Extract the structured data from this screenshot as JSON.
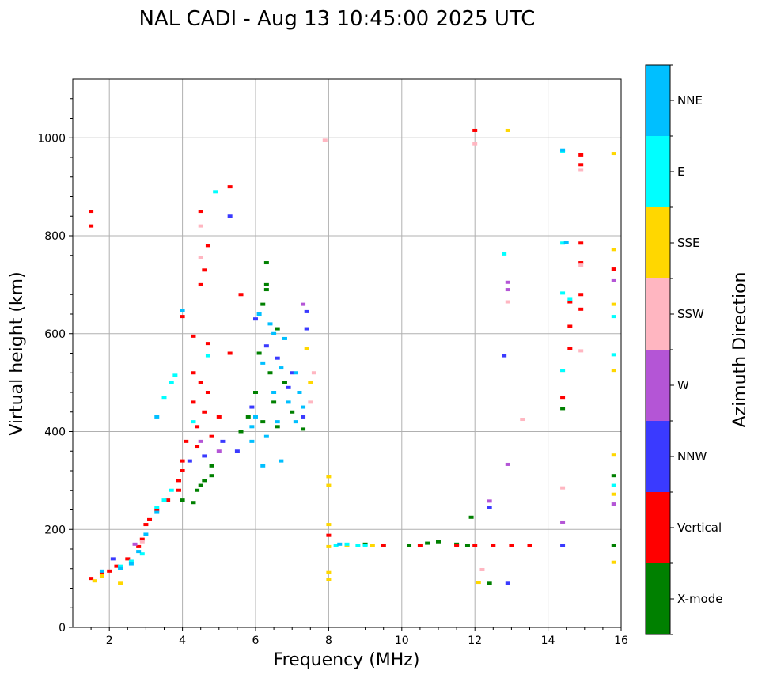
{
  "chart_data": {
    "type": "scatter",
    "title": "NAL CADI - Aug 13 10:45:00 2025 UTC",
    "xlabel": "Frequency (MHz)",
    "ylabel": "Virtual height (km)",
    "xlim": [
      1,
      16
    ],
    "ylim": [
      0,
      1120
    ],
    "x_ticks": [
      2,
      4,
      6,
      8,
      10,
      12,
      14,
      16
    ],
    "y_ticks": [
      0,
      200,
      400,
      600,
      800,
      1000
    ],
    "x_tick_labels": [
      "2",
      "4",
      "6",
      "8",
      "10",
      "12",
      "14",
      "16"
    ],
    "y_tick_labels": [
      "0",
      "200",
      "400",
      "600",
      "800",
      "1000"
    ],
    "grid": true,
    "colorbar": {
      "label": "Azimuth Direction",
      "categories": [
        {
          "name": "X-mode",
          "color": "#008000"
        },
        {
          "name": "Vertical",
          "color": "#ff0000"
        },
        {
          "name": "NNW",
          "color": "#3a3aff"
        },
        {
          "name": "W",
          "color": "#b455d6"
        },
        {
          "name": "SSW",
          "color": "#ffb6c1"
        },
        {
          "name": "SSE",
          "color": "#ffd700"
        },
        {
          "name": "E",
          "color": "#00ffff"
        },
        {
          "name": "NNE",
          "color": "#00bfff"
        }
      ]
    },
    "series": [
      {
        "name": "X-mode",
        "points": [
          [
            6.3,
            745
          ],
          [
            6.3,
            700
          ],
          [
            6.3,
            690
          ],
          [
            6.2,
            660
          ],
          [
            6.6,
            610
          ],
          [
            6.1,
            560
          ],
          [
            6.4,
            520
          ],
          [
            6.8,
            500
          ],
          [
            6.0,
            480
          ],
          [
            6.5,
            460
          ],
          [
            7.0,
            440
          ],
          [
            5.8,
            430
          ],
          [
            6.2,
            420
          ],
          [
            6.6,
            410
          ],
          [
            7.3,
            405
          ],
          [
            5.6,
            400
          ],
          [
            4.8,
            330
          ],
          [
            4.8,
            310
          ],
          [
            4.6,
            300
          ],
          [
            4.5,
            290
          ],
          [
            4.4,
            280
          ],
          [
            4.0,
            260
          ],
          [
            4.3,
            255
          ],
          [
            9.0,
            170
          ],
          [
            9.5,
            168
          ],
          [
            10.2,
            168
          ],
          [
            10.7,
            172
          ],
          [
            11.0,
            175
          ],
          [
            11.5,
            170
          ],
          [
            11.8,
            168
          ],
          [
            12.4,
            90
          ],
          [
            11.9,
            225
          ],
          [
            14.4,
            447
          ],
          [
            15.8,
            168
          ],
          [
            15.8,
            310
          ]
        ]
      },
      {
        "name": "Vertical",
        "points": [
          [
            1.5,
            820
          ],
          [
            1.5,
            850
          ],
          [
            5.3,
            900
          ],
          [
            4.5,
            850
          ],
          [
            4.7,
            780
          ],
          [
            4.6,
            730
          ],
          [
            4.5,
            700
          ],
          [
            5.6,
            680
          ],
          [
            4.0,
            635
          ],
          [
            4.3,
            595
          ],
          [
            4.7,
            580
          ],
          [
            5.3,
            560
          ],
          [
            4.3,
            520
          ],
          [
            4.5,
            500
          ],
          [
            4.7,
            480
          ],
          [
            4.3,
            460
          ],
          [
            4.6,
            440
          ],
          [
            5.0,
            430
          ],
          [
            4.4,
            410
          ],
          [
            4.1,
            380
          ],
          [
            4.4,
            370
          ],
          [
            4.8,
            390
          ],
          [
            4.0,
            340
          ],
          [
            4.0,
            320
          ],
          [
            3.9,
            300
          ],
          [
            3.9,
            280
          ],
          [
            3.6,
            260
          ],
          [
            3.3,
            240
          ],
          [
            3.1,
            220
          ],
          [
            3.0,
            210
          ],
          [
            2.9,
            180
          ],
          [
            2.8,
            165
          ],
          [
            2.5,
            140
          ],
          [
            2.2,
            125
          ],
          [
            2.0,
            115
          ],
          [
            1.8,
            110
          ],
          [
            1.5,
            100
          ],
          [
            8.0,
            188
          ],
          [
            9.5,
            168
          ],
          [
            10.5,
            168
          ],
          [
            11.5,
            168
          ],
          [
            12.0,
            168
          ],
          [
            12.5,
            168
          ],
          [
            13.0,
            168
          ],
          [
            13.5,
            168
          ],
          [
            14.4,
            470
          ],
          [
            14.6,
            570
          ],
          [
            14.6,
            615
          ],
          [
            14.6,
            665
          ],
          [
            14.9,
            650
          ],
          [
            14.9,
            680
          ],
          [
            14.9,
            745
          ],
          [
            14.9,
            785
          ],
          [
            14.9,
            945
          ],
          [
            14.9,
            965
          ],
          [
            15.8,
            732
          ],
          [
            12.0,
            1015
          ]
        ]
      },
      {
        "name": "NNW",
        "points": [
          [
            5.3,
            840
          ],
          [
            6.0,
            630
          ],
          [
            6.3,
            575
          ],
          [
            6.6,
            550
          ],
          [
            7.0,
            520
          ],
          [
            6.9,
            490
          ],
          [
            5.9,
            450
          ],
          [
            7.3,
            430
          ],
          [
            5.1,
            380
          ],
          [
            5.5,
            360
          ],
          [
            4.6,
            350
          ],
          [
            4.2,
            340
          ],
          [
            12.8,
            555
          ],
          [
            12.9,
            90
          ],
          [
            12.4,
            245
          ],
          [
            14.4,
            168
          ],
          [
            7.4,
            645
          ],
          [
            7.4,
            610
          ],
          [
            2.1,
            140
          ]
        ]
      },
      {
        "name": "W",
        "points": [
          [
            4.5,
            380
          ],
          [
            5.0,
            360
          ],
          [
            7.3,
            660
          ],
          [
            12.9,
            705
          ],
          [
            12.9,
            690
          ],
          [
            12.9,
            333
          ],
          [
            12.4,
            258
          ],
          [
            14.4,
            215
          ],
          [
            15.8,
            708
          ],
          [
            15.8,
            252
          ],
          [
            2.7,
            170
          ]
        ]
      },
      {
        "name": "SSW",
        "points": [
          [
            4.5,
            820
          ],
          [
            4.5,
            755
          ],
          [
            7.6,
            520
          ],
          [
            7.5,
            460
          ],
          [
            12.9,
            665
          ],
          [
            13.3,
            425
          ],
          [
            14.4,
            285
          ],
          [
            14.4,
            525
          ],
          [
            14.9,
            565
          ],
          [
            14.9,
            935
          ],
          [
            14.9,
            740
          ],
          [
            7.9,
            995
          ],
          [
            12.0,
            988
          ],
          [
            12.2,
            118
          ],
          [
            2.9,
            175
          ]
        ]
      },
      {
        "name": "SSE",
        "points": [
          [
            12.9,
            1015
          ],
          [
            15.8,
            968
          ],
          [
            15.8,
            772
          ],
          [
            15.8,
            660
          ],
          [
            15.8,
            525
          ],
          [
            15.8,
            352
          ],
          [
            15.8,
            272
          ],
          [
            15.8,
            133
          ],
          [
            8.0,
            308
          ],
          [
            8.0,
            290
          ],
          [
            8.0,
            210
          ],
          [
            8.0,
            165
          ],
          [
            8.0,
            112
          ],
          [
            8.0,
            98
          ],
          [
            8.5,
            168
          ],
          [
            9.2,
            168
          ],
          [
            12.1,
            92
          ],
          [
            7.4,
            570
          ],
          [
            7.5,
            500
          ],
          [
            2.3,
            90
          ],
          [
            1.8,
            105
          ],
          [
            1.6,
            95
          ]
        ]
      },
      {
        "name": "E",
        "points": [
          [
            4.9,
            890
          ],
          [
            4.7,
            555
          ],
          [
            3.7,
            500
          ],
          [
            3.8,
            515
          ],
          [
            3.5,
            470
          ],
          [
            4.3,
            420
          ],
          [
            3.7,
            280
          ],
          [
            3.5,
            260
          ],
          [
            3.3,
            245
          ],
          [
            2.9,
            150
          ],
          [
            2.6,
            135
          ],
          [
            2.3,
            125
          ],
          [
            12.8,
            763
          ],
          [
            14.4,
            973
          ],
          [
            14.4,
            785
          ],
          [
            14.4,
            683
          ],
          [
            14.4,
            525
          ],
          [
            14.6,
            670
          ],
          [
            15.8,
            635
          ],
          [
            15.8,
            557
          ],
          [
            15.8,
            290
          ],
          [
            8.2,
            168
          ],
          [
            8.5,
            170
          ],
          [
            8.8,
            168
          ],
          [
            9.0,
            168
          ]
        ]
      },
      {
        "name": "NNE",
        "points": [
          [
            4.0,
            648
          ],
          [
            6.1,
            640
          ],
          [
            6.4,
            620
          ],
          [
            6.5,
            600
          ],
          [
            6.8,
            590
          ],
          [
            6.2,
            540
          ],
          [
            6.7,
            530
          ],
          [
            7.1,
            520
          ],
          [
            7.2,
            480
          ],
          [
            6.5,
            480
          ],
          [
            6.9,
            460
          ],
          [
            7.3,
            450
          ],
          [
            6.0,
            430
          ],
          [
            6.6,
            420
          ],
          [
            7.1,
            420
          ],
          [
            5.9,
            410
          ],
          [
            6.3,
            390
          ],
          [
            5.9,
            380
          ],
          [
            6.2,
            330
          ],
          [
            6.7,
            340
          ],
          [
            3.3,
            430
          ],
          [
            3.3,
            235
          ],
          [
            3.0,
            190
          ],
          [
            2.8,
            155
          ],
          [
            2.6,
            130
          ],
          [
            2.3,
            120
          ],
          [
            1.8,
            115
          ],
          [
            14.4,
            975
          ],
          [
            14.5,
            787
          ],
          [
            8.3,
            170
          ]
        ]
      }
    ]
  }
}
